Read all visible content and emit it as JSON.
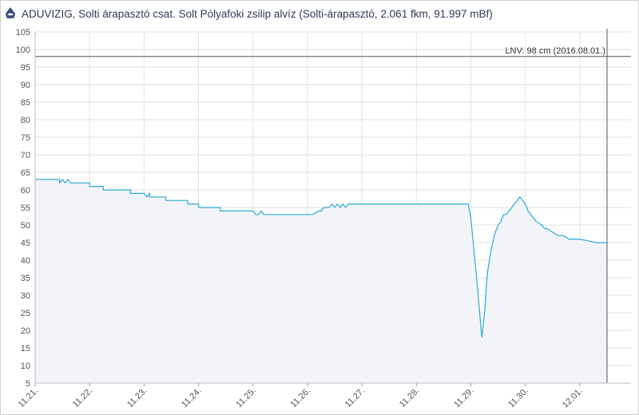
{
  "header": {
    "title": "ADUVIZIG, Solti árapasztó csat. Solt Pólyafoki zsilip alvíz (Solti-árapasztó, 2.061 fkm, 91.997 mBf)",
    "logo_icon": "water-drop-logo-icon"
  },
  "colors": {
    "line": "#2aa9d6",
    "area": "#f3f4f8",
    "grid": "#e2e2e2",
    "threshold": "#555555"
  },
  "chart_data": {
    "type": "area",
    "title": "ADUVIZIG, Solti árapasztó csat. Solt Pólyafoki zsilip alvíz (Solti-árapasztó, 2.061 fkm, 91.997 mBf)",
    "xlabel": "",
    "ylabel": "",
    "ylim": [
      5,
      105
    ],
    "yticks": [
      5,
      10,
      15,
      20,
      25,
      30,
      35,
      40,
      45,
      50,
      55,
      60,
      65,
      70,
      75,
      80,
      85,
      90,
      95,
      100,
      105
    ],
    "xlim": [
      0,
      10.5
    ],
    "xticks": [
      0,
      1,
      2,
      3,
      4,
      5,
      6,
      7,
      8,
      9,
      10
    ],
    "xtick_labels": [
      "11.21.",
      "11.22.",
      "11.23.",
      "11.24.",
      "11.25.",
      "11.26.",
      "11.27.",
      "11.28.",
      "11.29.",
      "11.30.",
      "12.01."
    ],
    "grid": true,
    "threshold": {
      "value": 98,
      "label": "LNV: 98 cm (2016.08.01.)"
    },
    "vline_x": 10.5,
    "series": [
      {
        "x": [
          0,
          0.45,
          0.45,
          0.5,
          0.55,
          0.6,
          0.65,
          0.7,
          0.75,
          0.8,
          0.8,
          1.0,
          1.0,
          1.25,
          1.25,
          1.5,
          1.5,
          1.75,
          1.75,
          2.0,
          2.05,
          2.1,
          2.1,
          2.4,
          2.4,
          2.8,
          2.8,
          3.0,
          3.0,
          3.4,
          3.4,
          3.8,
          3.8,
          4.0,
          4.05,
          4.1,
          4.15,
          4.2,
          4.3,
          4.5,
          4.6,
          4.7,
          4.9,
          5.0,
          5.1,
          5.2,
          5.25,
          5.3,
          5.35,
          5.4,
          5.45,
          5.5,
          5.55,
          5.6,
          5.65,
          5.7,
          5.75,
          6.0,
          6.5,
          7.0,
          7.5,
          7.95,
          8.0,
          8.05,
          8.1,
          8.2,
          8.25,
          8.3,
          8.35,
          8.4,
          8.45,
          8.5,
          8.55,
          8.6,
          8.65,
          8.7,
          8.75,
          8.8,
          8.85,
          8.9,
          8.95,
          9.0,
          9.05,
          9.1,
          9.15,
          9.2,
          9.3,
          9.35,
          9.4,
          9.5,
          9.6,
          9.7,
          9.8,
          9.9,
          10.0,
          10.3,
          10.5
        ],
        "values": [
          63,
          63,
          62,
          63,
          62,
          63,
          62,
          62,
          62,
          62,
          62,
          62,
          61,
          61,
          60,
          60,
          60,
          60,
          59,
          59,
          58,
          59,
          58,
          58,
          57,
          57,
          56,
          56,
          55,
          55,
          54,
          54,
          54,
          54,
          53,
          53,
          54,
          53,
          53,
          53,
          53,
          53,
          53,
          53,
          53,
          54,
          54,
          55,
          55,
          55,
          56,
          55,
          56,
          55,
          56,
          55,
          56,
          56,
          56,
          56,
          56,
          56,
          52,
          44,
          36,
          18,
          25,
          36,
          41,
          45,
          48,
          50,
          51,
          53,
          53,
          54,
          55,
          56,
          57,
          58,
          57,
          56,
          54,
          53,
          52,
          51,
          50,
          49,
          49,
          48,
          47,
          47,
          46,
          46,
          46,
          45,
          45
        ]
      }
    ]
  }
}
